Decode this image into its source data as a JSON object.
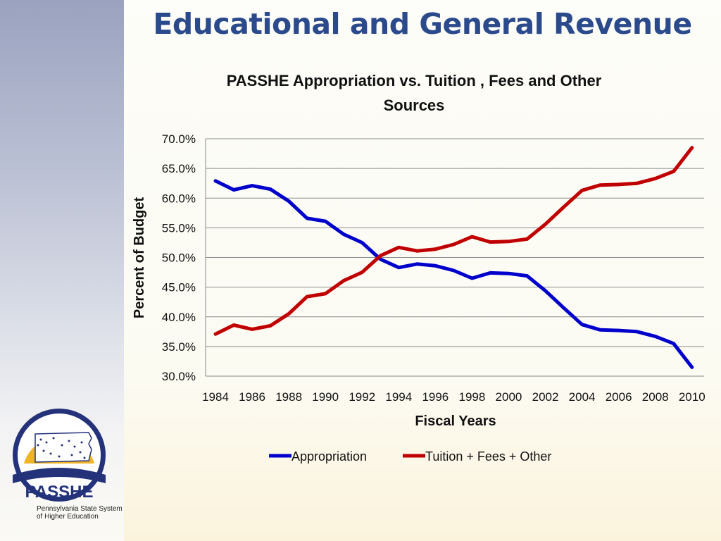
{
  "slide": {
    "title": "Educational and General Revenue"
  },
  "logo": {
    "name": "PASSHE",
    "subtitle_line1": "Pennsylvania State System",
    "subtitle_line2": "of Higher Education"
  },
  "colors": {
    "title": "#2b4a8c",
    "appropriation": "#0000cc",
    "tuition": "#c00000"
  },
  "chart_data": {
    "type": "line",
    "title_line1": "PASSHE Appropriation vs. Tuition , Fees and Other",
    "title_line2": "Sources",
    "xlabel": "Fiscal Years",
    "ylabel": "Percent of Budget",
    "ylim": [
      30,
      70
    ],
    "yticks": [
      "30.0%",
      "35.0%",
      "40.0%",
      "45.0%",
      "50.0%",
      "55.0%",
      "60.0%",
      "65.0%",
      "70.0%"
    ],
    "xticks": [
      "1984",
      "1986",
      "1988",
      "1990",
      "1992",
      "1994",
      "1996",
      "1998",
      "2000",
      "2002",
      "2004",
      "2006",
      "2008",
      "2010"
    ],
    "x": [
      1984,
      1985,
      1986,
      1987,
      1988,
      1989,
      1990,
      1991,
      1992,
      1993,
      1994,
      1995,
      1996,
      1997,
      1998,
      1999,
      2000,
      2001,
      2002,
      2003,
      2004,
      2005,
      2006,
      2007,
      2008,
      2009,
      2010
    ],
    "grid": true,
    "legend_position": "bottom",
    "series": [
      {
        "name": "Appropriation",
        "color": "#0000cc",
        "values": [
          62.9,
          61.4,
          62.1,
          61.5,
          59.5,
          56.6,
          56.1,
          53.9,
          52.5,
          49.7,
          48.3,
          48.9,
          48.6,
          47.8,
          46.5,
          47.4,
          47.3,
          46.9,
          44.4,
          41.5,
          38.7,
          37.8,
          37.7,
          37.5,
          36.7,
          35.5,
          31.5
        ]
      },
      {
        "name": "Tuition + Fees + Other",
        "color": "#c00000",
        "values": [
          37.1,
          38.6,
          37.9,
          38.5,
          40.5,
          43.4,
          43.9,
          46.1,
          47.5,
          50.3,
          51.7,
          51.1,
          51.4,
          52.2,
          53.5,
          52.6,
          52.7,
          53.1,
          55.6,
          58.5,
          61.3,
          62.2,
          62.3,
          62.5,
          63.3,
          64.5,
          68.5
        ]
      }
    ]
  }
}
